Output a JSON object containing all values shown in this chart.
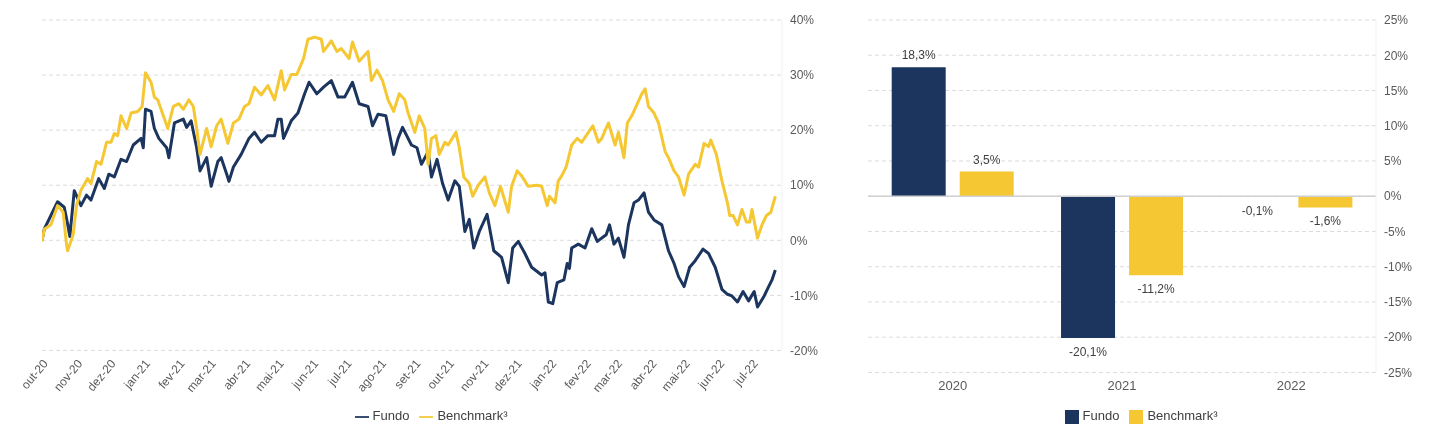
{
  "chart_data": [
    {
      "type": "line",
      "ylim": [
        -20,
        40
      ],
      "yticks": [
        {
          "value": -20,
          "label": "-20%"
        },
        {
          "value": -10,
          "label": "-10%"
        },
        {
          "value": 0,
          "label": "0%"
        },
        {
          "value": 10,
          "label": "10%"
        },
        {
          "value": 20,
          "label": "20%"
        },
        {
          "value": 30,
          "label": "30%"
        },
        {
          "value": 40,
          "label": "40%"
        }
      ],
      "xlim": [
        "2020-10-01",
        "2022-07-28"
      ],
      "xticks": [
        {
          "value": "2020-10-01",
          "label": "out-20"
        },
        {
          "value": "2020-11-01",
          "label": "nov-20"
        },
        {
          "value": "2020-12-01",
          "label": "dez-20"
        },
        {
          "value": "2021-01-01",
          "label": "jan-21"
        },
        {
          "value": "2021-02-01",
          "label": "fev-21"
        },
        {
          "value": "2021-03-01",
          "label": "mar-21"
        },
        {
          "value": "2021-04-01",
          "label": "abr-21"
        },
        {
          "value": "2021-05-01",
          "label": "mai-21"
        },
        {
          "value": "2021-06-01",
          "label": "jun-21"
        },
        {
          "value": "2021-07-01",
          "label": "jul-21"
        },
        {
          "value": "2021-08-01",
          "label": "ago-21"
        },
        {
          "value": "2021-09-01",
          "label": "set-21"
        },
        {
          "value": "2021-10-01",
          "label": "out-21"
        },
        {
          "value": "2021-11-01",
          "label": "nov-21"
        },
        {
          "value": "2021-12-01",
          "label": "dez-21"
        },
        {
          "value": "2022-01-01",
          "label": "jan-22"
        },
        {
          "value": "2022-02-01",
          "label": "fev-22"
        },
        {
          "value": "2022-03-01",
          "label": "mar-22"
        },
        {
          "value": "2022-04-01",
          "label": "abr-22"
        },
        {
          "value": "2022-05-01",
          "label": "mai-22"
        },
        {
          "value": "2022-06-01",
          "label": "jun-22"
        },
        {
          "value": "2022-07-01",
          "label": "jul-22"
        }
      ],
      "grid": "y",
      "legend": "bottom",
      "series": [
        {
          "name": "Fundo",
          "color": "#1c355e",
          "x": [
            "2020-10-01",
            "2020-10-03",
            "2020-10-09",
            "2020-10-15",
            "2020-10-21",
            "2020-10-24",
            "2020-10-26",
            "2020-10-30",
            "2020-11-05",
            "2020-11-10",
            "2020-11-14",
            "2020-11-21",
            "2020-11-26",
            "2020-11-30",
            "2020-12-05",
            "2020-12-11",
            "2020-12-16",
            "2020-12-22",
            "2020-12-29",
            "2020-12-31",
            "2021-01-02",
            "2021-01-07",
            "2021-01-10",
            "2021-01-14",
            "2021-01-21",
            "2021-01-23",
            "2021-01-28",
            "2021-02-05",
            "2021-02-08",
            "2021-02-12",
            "2021-02-17",
            "2021-02-20",
            "2021-02-26",
            "2021-03-02",
            "2021-03-08",
            "2021-03-11",
            "2021-03-16",
            "2021-03-18",
            "2021-03-22",
            "2021-03-29",
            "2021-04-05",
            "2021-04-10",
            "2021-04-16",
            "2021-04-22",
            "2021-04-28",
            "2021-05-01",
            "2021-05-04",
            "2021-05-06",
            "2021-05-13",
            "2021-05-19",
            "2021-05-25",
            "2021-05-29",
            "2021-06-05",
            "2021-06-11",
            "2021-06-18",
            "2021-06-24",
            "2021-06-30",
            "2021-07-07",
            "2021-07-13",
            "2021-07-21",
            "2021-07-25",
            "2021-07-30",
            "2021-08-06",
            "2021-08-13",
            "2021-08-17",
            "2021-08-21",
            "2021-08-29",
            "2021-09-03",
            "2021-09-07",
            "2021-09-13",
            "2021-09-16",
            "2021-09-21",
            "2021-09-26",
            "2021-10-01",
            "2021-10-07",
            "2021-10-11",
            "2021-10-16",
            "2021-10-20",
            "2021-10-24",
            "2021-10-29",
            "2021-11-05",
            "2021-11-11",
            "2021-11-18",
            "2021-11-24",
            "2021-11-28",
            "2021-12-03",
            "2021-12-09",
            "2021-12-15",
            "2021-12-24",
            "2021-12-27",
            "2021-12-30",
            "2022-01-03",
            "2022-01-07",
            "2022-01-13",
            "2022-01-16",
            "2022-01-18",
            "2022-01-20",
            "2022-01-26",
            "2022-02-01",
            "2022-02-07",
            "2022-02-12",
            "2022-02-20",
            "2022-02-23",
            "2022-02-27",
            "2022-03-03",
            "2022-03-08",
            "2022-03-12",
            "2022-03-17",
            "2022-03-21",
            "2022-03-26",
            "2022-03-30",
            "2022-04-04",
            "2022-04-11",
            "2022-04-17",
            "2022-04-22",
            "2022-04-26",
            "2022-05-01",
            "2022-05-06",
            "2022-05-11",
            "2022-05-18",
            "2022-05-23",
            "2022-05-29",
            "2022-06-04",
            "2022-06-09",
            "2022-06-13",
            "2022-06-18",
            "2022-06-23",
            "2022-06-28",
            "2022-07-03",
            "2022-07-06",
            "2022-07-12",
            "2022-07-16",
            "2022-07-19",
            "2022-07-22"
          ],
          "values": [
            0,
            2,
            4.5,
            7,
            6,
            3,
            0.7,
            9,
            6.3,
            8.2,
            7.3,
            11.2,
            9.4,
            12,
            11.5,
            14.7,
            14.3,
            17.3,
            18.5,
            16.8,
            23.8,
            23.4,
            20.3,
            18.5,
            16.8,
            15,
            21.3,
            22,
            20.5,
            21.7,
            16.8,
            12.6,
            15,
            9.8,
            14.3,
            15,
            12,
            10.7,
            13.3,
            15.6,
            18.5,
            19.6,
            17.8,
            19,
            19,
            22,
            22,
            18.5,
            21.7,
            23.1,
            26.6,
            28.7,
            26.6,
            27.8,
            29,
            26,
            26,
            28.7,
            24.8,
            24.3,
            20.8,
            22.9,
            22.6,
            15.6,
            18.5,
            20.5,
            17.3,
            16.8,
            13.8,
            16.1,
            11.5,
            14.7,
            10.3,
            7.3,
            10.8,
            9.8,
            1.6,
            3.8,
            -1.4,
            1.6,
            4.7,
            -1.9,
            -3.1,
            -7.7,
            -1.4,
            -0.2,
            -2.4,
            -4.9,
            -6.3,
            -5.9,
            -11.2,
            -11.5,
            -7.7,
            -7.2,
            -4.2,
            -5.1,
            -1.4,
            -0.7,
            -1.4,
            2.1,
            -0.2,
            1,
            2.8,
            -0.7,
            0.4,
            -3.1,
            2.8,
            6.8,
            7.3,
            8.6,
            5.1,
            3.7,
            2.8,
            -1.9,
            -4.2,
            -6.6,
            -8.4,
            -4.9,
            -3.7,
            -1.6,
            -2.4,
            -4.9,
            -8.9,
            -9.8,
            -10.1,
            -11.2,
            -9.3,
            -11,
            -9.3,
            -12.1,
            -10.1,
            -8.4,
            -7.2,
            -5.4
          ]
        },
        {
          "name": "Benchmark³",
          "color": "#f5c833",
          "x": [
            "2020-10-01",
            "2020-10-03",
            "2020-10-09",
            "2020-10-15",
            "2020-10-20",
            "2020-10-23",
            "2020-10-24",
            "2020-10-29",
            "2020-11-01",
            "2020-11-05",
            "2020-11-11",
            "2020-11-14",
            "2020-11-19",
            "2020-11-23",
            "2020-11-28",
            "2020-12-02",
            "2020-12-05",
            "2020-12-08",
            "2020-12-11",
            "2020-12-16",
            "2020-12-20",
            "2020-12-26",
            "2020-12-30",
            "2021-01-02",
            "2021-01-07",
            "2021-01-10",
            "2021-01-13",
            "2021-01-18",
            "2021-01-22",
            "2021-01-27",
            "2021-02-01",
            "2021-02-05",
            "2021-02-10",
            "2021-02-14",
            "2021-02-17",
            "2021-02-20",
            "2021-02-26",
            "2021-03-02",
            "2021-03-07",
            "2021-03-11",
            "2021-03-17",
            "2021-03-22",
            "2021-03-27",
            "2021-04-01",
            "2021-04-05",
            "2021-04-10",
            "2021-04-16",
            "2021-04-22",
            "2021-04-28",
            "2021-05-04",
            "2021-05-07",
            "2021-05-13",
            "2021-05-18",
            "2021-05-24",
            "2021-05-28",
            "2021-06-03",
            "2021-06-09",
            "2021-06-11",
            "2021-06-18",
            "2021-06-23",
            "2021-06-27",
            "2021-07-04",
            "2021-07-07",
            "2021-07-13",
            "2021-07-21",
            "2021-07-24",
            "2021-07-29",
            "2021-08-03",
            "2021-08-08",
            "2021-08-13",
            "2021-08-18",
            "2021-08-23",
            "2021-08-26",
            "2021-09-01",
            "2021-09-05",
            "2021-09-10",
            "2021-09-13",
            "2021-09-16",
            "2021-09-20",
            "2021-09-23",
            "2021-09-28",
            "2021-10-01",
            "2021-10-08",
            "2021-10-11",
            "2021-10-15",
            "2021-10-20",
            "2021-10-23",
            "2021-10-28",
            "2021-11-03",
            "2021-11-07",
            "2021-11-12",
            "2021-11-17",
            "2021-11-24",
            "2021-11-27",
            "2021-12-02",
            "2021-12-06",
            "2021-12-12",
            "2021-12-20",
            "2021-12-24",
            "2021-12-29",
            "2021-12-31",
            "2022-01-05",
            "2022-01-08",
            "2022-01-11",
            "2022-01-15",
            "2022-01-20",
            "2022-01-25",
            "2022-01-29",
            "2022-02-04",
            "2022-02-08",
            "2022-02-13",
            "2022-02-16",
            "2022-02-22",
            "2022-02-28",
            "2022-03-03",
            "2022-03-08",
            "2022-03-11",
            "2022-03-15",
            "2022-03-20",
            "2022-03-24",
            "2022-03-27",
            "2022-03-30",
            "2022-04-04",
            "2022-04-08",
            "2022-04-14",
            "2022-04-17",
            "2022-04-22",
            "2022-04-26",
            "2022-05-01",
            "2022-05-05",
            "2022-05-11",
            "2022-05-14",
            "2022-05-19",
            "2022-05-23",
            "2022-05-25",
            "2022-05-30",
            "2022-06-04",
            "2022-06-09",
            "2022-06-11",
            "2022-06-14",
            "2022-06-18",
            "2022-06-22",
            "2022-06-26",
            "2022-06-29",
            "2022-07-01",
            "2022-07-06",
            "2022-07-10",
            "2022-07-14",
            "2022-07-18",
            "2022-07-22"
          ],
          "values": [
            -0.2,
            2,
            2.8,
            6.3,
            5.1,
            -0.7,
            -1.9,
            1,
            6.3,
            9.1,
            11.2,
            10.3,
            14.3,
            13.8,
            17.8,
            17.8,
            19.4,
            19,
            22.6,
            20.3,
            23.1,
            23.4,
            24.3,
            30.4,
            28.7,
            26,
            25.5,
            22.6,
            20.3,
            24.3,
            24.8,
            23.8,
            25.5,
            24.3,
            20.3,
            15.6,
            20.3,
            17,
            20.8,
            22,
            17.6,
            21.3,
            22,
            24.3,
            24.8,
            27.8,
            26.4,
            28.1,
            25.5,
            30.8,
            27.3,
            30.1,
            30.1,
            33,
            36.5,
            36.9,
            36.5,
            34.3,
            36.2,
            34.3,
            34.8,
            33,
            36,
            32.5,
            34.3,
            29,
            30.9,
            29,
            25.5,
            23.4,
            26.6,
            25.5,
            23.1,
            19.6,
            22.6,
            20.3,
            13.8,
            18.5,
            19,
            15.6,
            17.8,
            17.3,
            19.6,
            16.8,
            11.5,
            10.3,
            8,
            10,
            11.5,
            8.6,
            6.3,
            9.8,
            5.1,
            9.8,
            12.6,
            11.7,
            9.8,
            10,
            9.8,
            6.3,
            8,
            6.8,
            10.8,
            11.7,
            13.3,
            17.3,
            18.5,
            17.8,
            19.6,
            20.8,
            17.8,
            18.5,
            21.3,
            17.3,
            19.6,
            15,
            21.3,
            22.6,
            24.8,
            26.6,
            27.5,
            24.3,
            23.1,
            21.3,
            16.1,
            15,
            12.6,
            11.5,
            8.2,
            12,
            13.8,
            13.3,
            17.6,
            17,
            18.2,
            15.6,
            10.8,
            6.8,
            4.5,
            4.5,
            2.8,
            5.6,
            3.3,
            3.3,
            5.6,
            0.4,
            2.8,
            4.5,
            5.1,
            8
          ]
        }
      ]
    },
    {
      "type": "bar",
      "categories": [
        "2020",
        "2021",
        "2022"
      ],
      "ylim": [
        -25,
        25
      ],
      "yticks": [
        {
          "value": -25,
          "label": "-25%"
        },
        {
          "value": -20,
          "label": "-20%"
        },
        {
          "value": -15,
          "label": "-15%"
        },
        {
          "value": -10,
          "label": "-10%"
        },
        {
          "value": -5,
          "label": "-5%"
        },
        {
          "value": 0,
          "label": "0%"
        },
        {
          "value": 5,
          "label": "5%"
        },
        {
          "value": 10,
          "label": "10%"
        },
        {
          "value": 15,
          "label": "15%"
        },
        {
          "value": 20,
          "label": "20%"
        },
        {
          "value": 25,
          "label": "25%"
        }
      ],
      "grid": "y",
      "legend": "bottom",
      "ref_lines": [
        {
          "axis": "y",
          "value": 0
        }
      ],
      "series": [
        {
          "name": "Fundo",
          "color": "#1c355e",
          "values": [
            18.3,
            -20.1,
            -0.1
          ],
          "value_labels": [
            "18,3%",
            "-20,1%",
            "-0,1%"
          ]
        },
        {
          "name": "Benchmark³",
          "color": "#f5c833",
          "values": [
            3.5,
            -11.2,
            -1.6
          ],
          "value_labels": [
            "3,5%",
            "-11,2%",
            "-1,6%"
          ]
        }
      ]
    }
  ]
}
